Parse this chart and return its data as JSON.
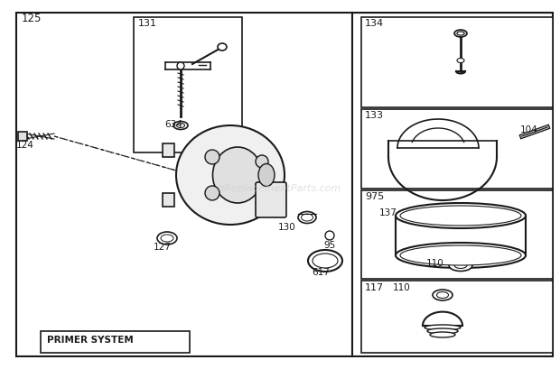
{
  "bg_color": "#ffffff",
  "line_color": "#1a1a1a",
  "watermark": "eReplacementParts.com",
  "figsize": [
    6.2,
    4.09
  ],
  "dpi": 100
}
